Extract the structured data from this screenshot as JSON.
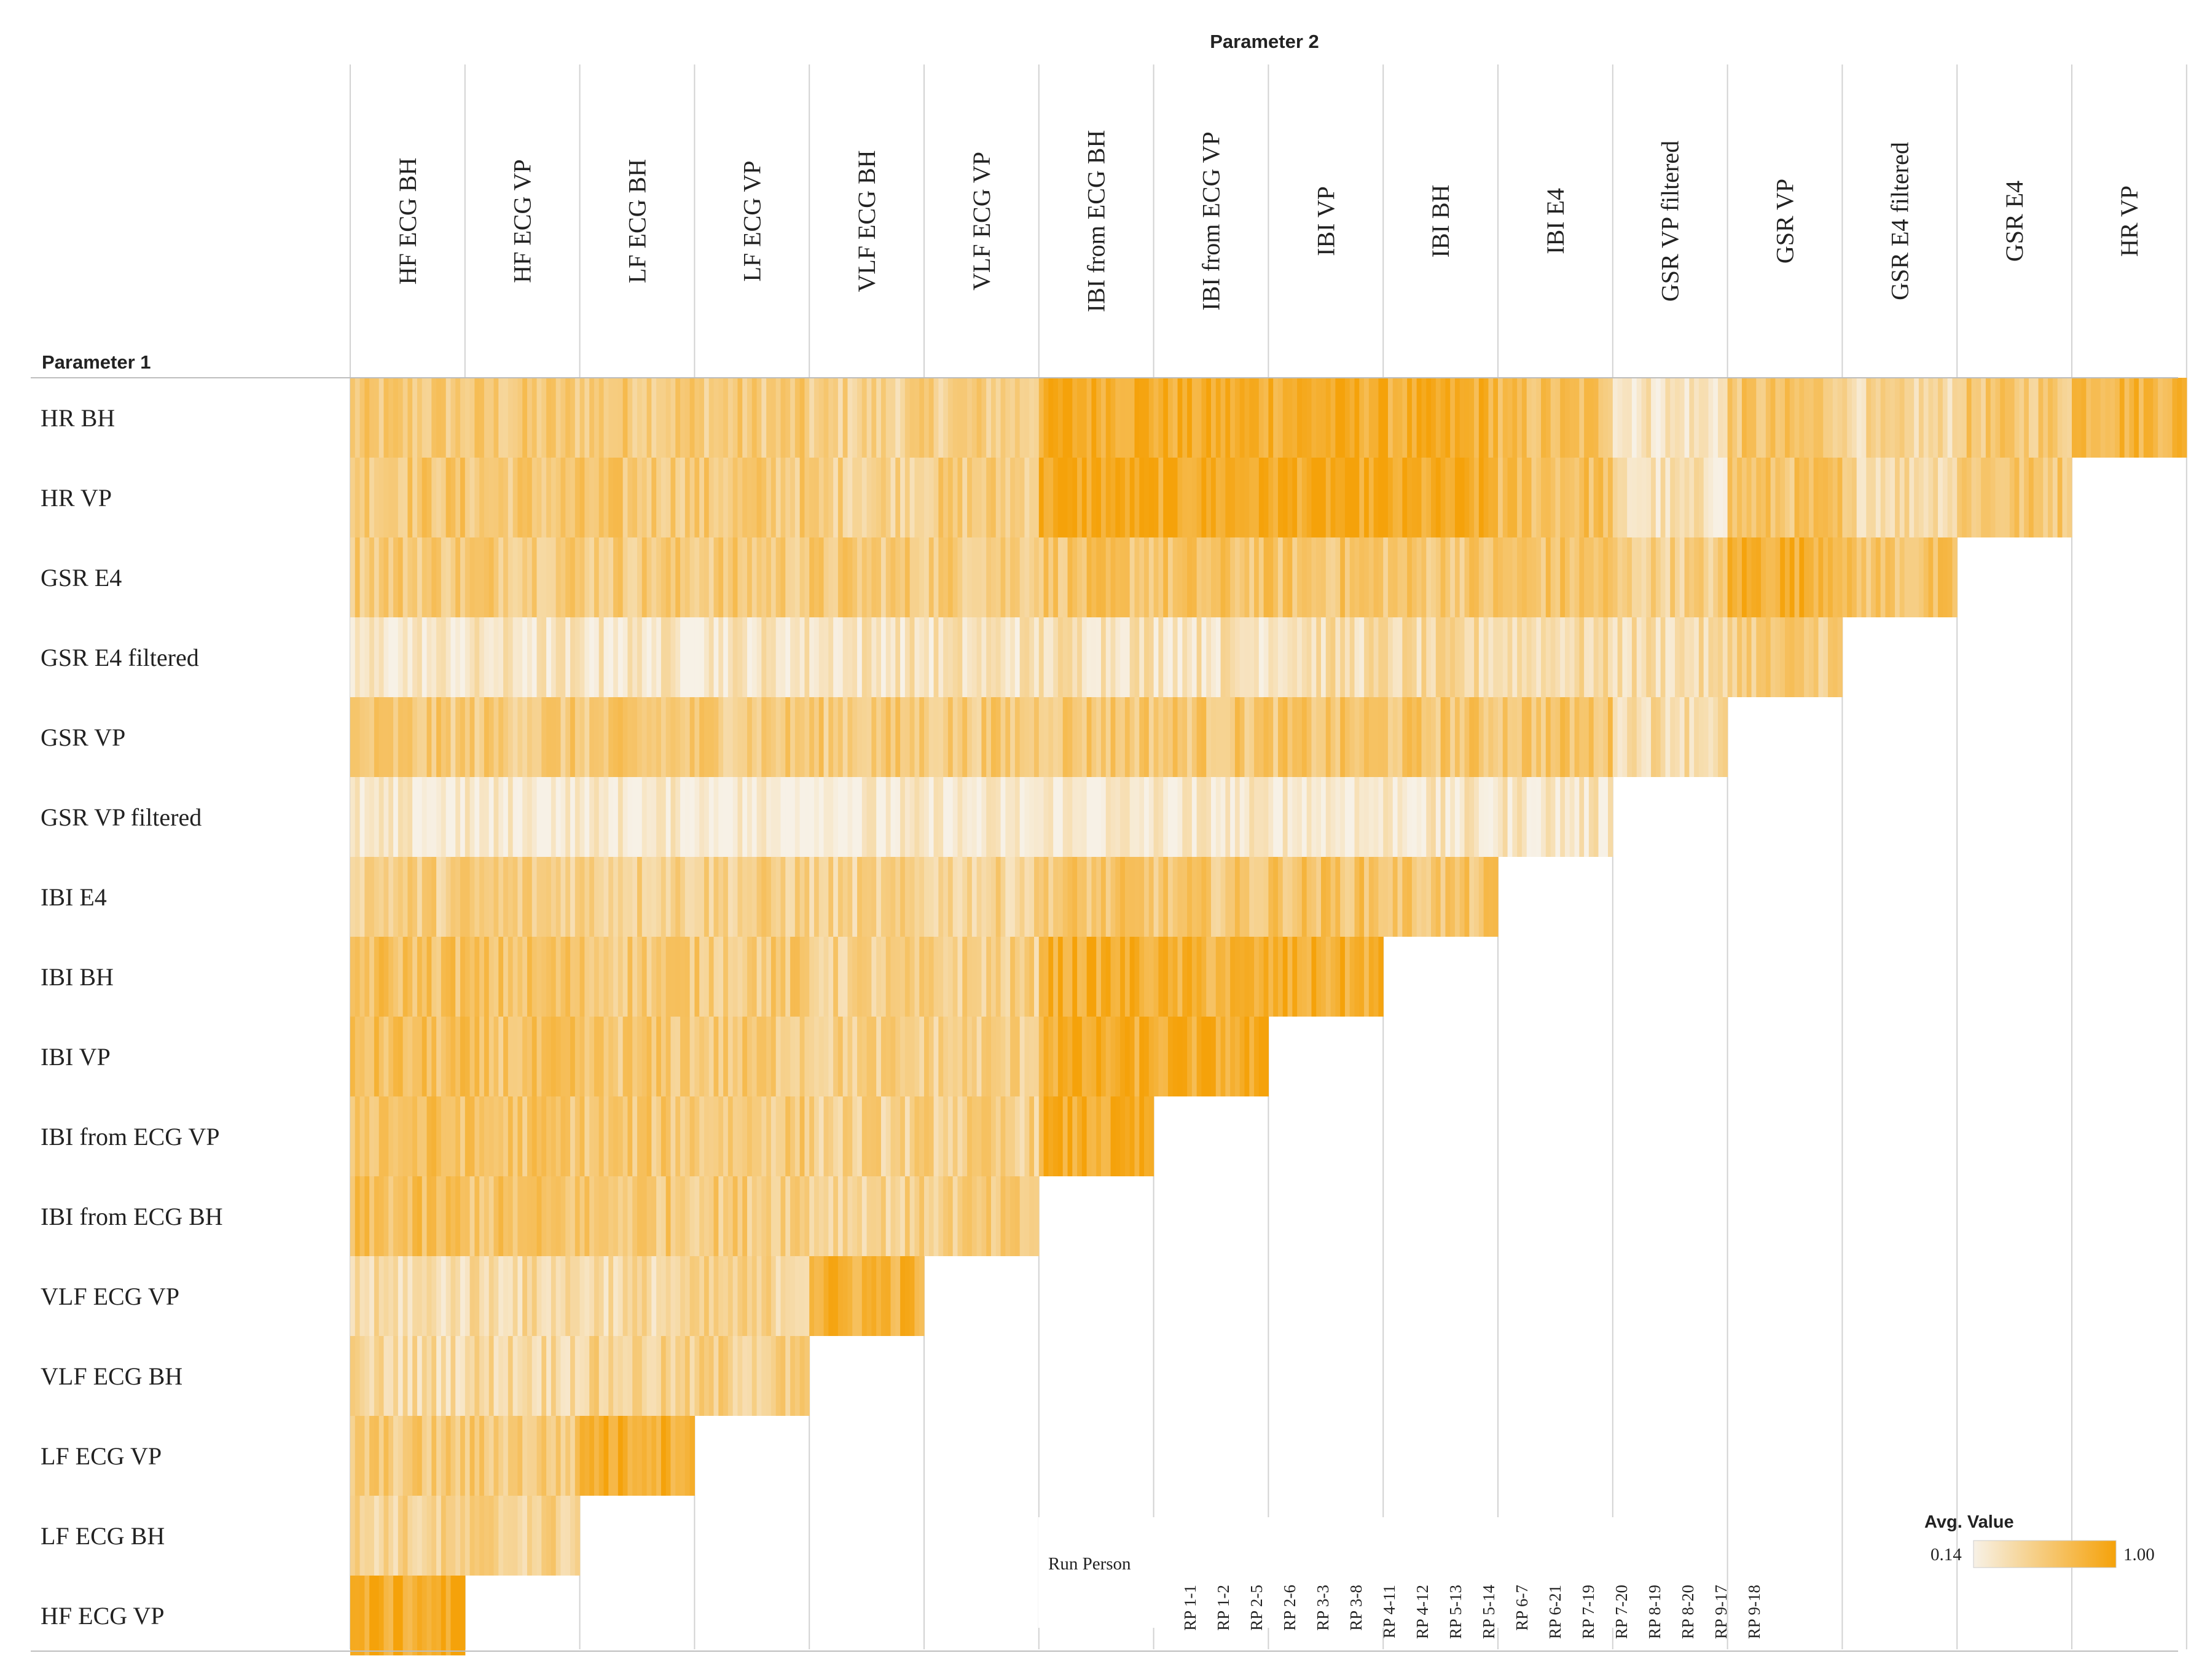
{
  "chart_data": {
    "type": "heatmap",
    "title": "",
    "col_axis_title": "Parameter 2",
    "row_axis_title": "Parameter 1",
    "columns": [
      "HF ECG BH",
      "HF ECG VP",
      "LF ECG BH",
      "LF ECG VP",
      "VLF ECG BH",
      "VLF ECG VP",
      "IBI from ECG BH",
      "IBI from ECG VP",
      "IBI VP",
      "IBI BH",
      "IBI E4",
      "GSR VP filtered",
      "GSR VP",
      "GSR E4 filtered",
      "GSR E4",
      "HR VP"
    ],
    "rows": [
      "HR BH",
      "HR VP",
      "GSR E4",
      "GSR E4 filtered",
      "GSR VP",
      "GSR VP filtered",
      "IBI E4",
      "IBI BH",
      "IBI VP",
      "IBI from ECG VP",
      "IBI from ECG BH",
      "VLF ECG VP",
      "VLF ECG BH",
      "LF ECG VP",
      "LF ECG BH",
      "HF ECG VP"
    ],
    "cells_per_row": [
      16,
      15,
      14,
      13,
      12,
      11,
      10,
      9,
      8,
      7,
      6,
      5,
      4,
      3,
      2,
      1
    ],
    "sub_axis_label": "Run Person",
    "sub_categories": [
      "RP 1-1",
      "RP 1-2",
      "RP 2-5",
      "RP 2-6",
      "RP 3-3",
      "RP 3-8",
      "RP 4-11",
      "RP 4-12",
      "RP 5-13",
      "RP 5-14",
      "RP 6-7",
      "RP 6-21",
      "RP 7-19",
      "RP 7-20",
      "RP 8-19",
      "RP 8-20",
      "RP 9-17",
      "RP 9-18"
    ],
    "color_scale": {
      "label": "Avg. Value",
      "min": 0.14,
      "max": 1.0,
      "low_color": "#f7f1e6",
      "high_color": "#f5a20a"
    },
    "cell_mean_values": [
      [
        0.56,
        0.56,
        0.58,
        0.55,
        0.48,
        0.52,
        0.9,
        0.86,
        0.88,
        0.84,
        0.66,
        0.3,
        0.6,
        0.4,
        0.58,
        0.8
      ],
      [
        0.6,
        0.58,
        0.58,
        0.56,
        0.5,
        0.54,
        0.92,
        0.9,
        0.92,
        0.86,
        0.68,
        0.3,
        0.62,
        0.42,
        0.6
      ],
      [
        0.58,
        0.58,
        0.56,
        0.56,
        0.56,
        0.56,
        0.62,
        0.62,
        0.62,
        0.6,
        0.62,
        0.5,
        0.86,
        0.62
      ],
      [
        0.24,
        0.26,
        0.26,
        0.28,
        0.3,
        0.3,
        0.34,
        0.32,
        0.36,
        0.38,
        0.38,
        0.36,
        0.56
      ],
      [
        0.56,
        0.56,
        0.56,
        0.56,
        0.56,
        0.56,
        0.6,
        0.6,
        0.6,
        0.6,
        0.62,
        0.4
      ],
      [
        0.2,
        0.2,
        0.2,
        0.2,
        0.2,
        0.2,
        0.22,
        0.22,
        0.24,
        0.24,
        0.26
      ],
      [
        0.52,
        0.52,
        0.5,
        0.5,
        0.46,
        0.46,
        0.6,
        0.58,
        0.64,
        0.6
      ],
      [
        0.66,
        0.62,
        0.58,
        0.56,
        0.48,
        0.5,
        0.86,
        0.8,
        0.84
      ],
      [
        0.66,
        0.62,
        0.58,
        0.56,
        0.5,
        0.5,
        0.86,
        0.86
      ],
      [
        0.66,
        0.62,
        0.58,
        0.56,
        0.48,
        0.5,
        0.86
      ],
      [
        0.66,
        0.62,
        0.58,
        0.56,
        0.48,
        0.52
      ],
      [
        0.36,
        0.4,
        0.4,
        0.46,
        0.82
      ],
      [
        0.4,
        0.42,
        0.46,
        0.5
      ],
      [
        0.56,
        0.56,
        0.88
      ],
      [
        0.46,
        0.48
      ],
      [
        0.88
      ]
    ]
  }
}
